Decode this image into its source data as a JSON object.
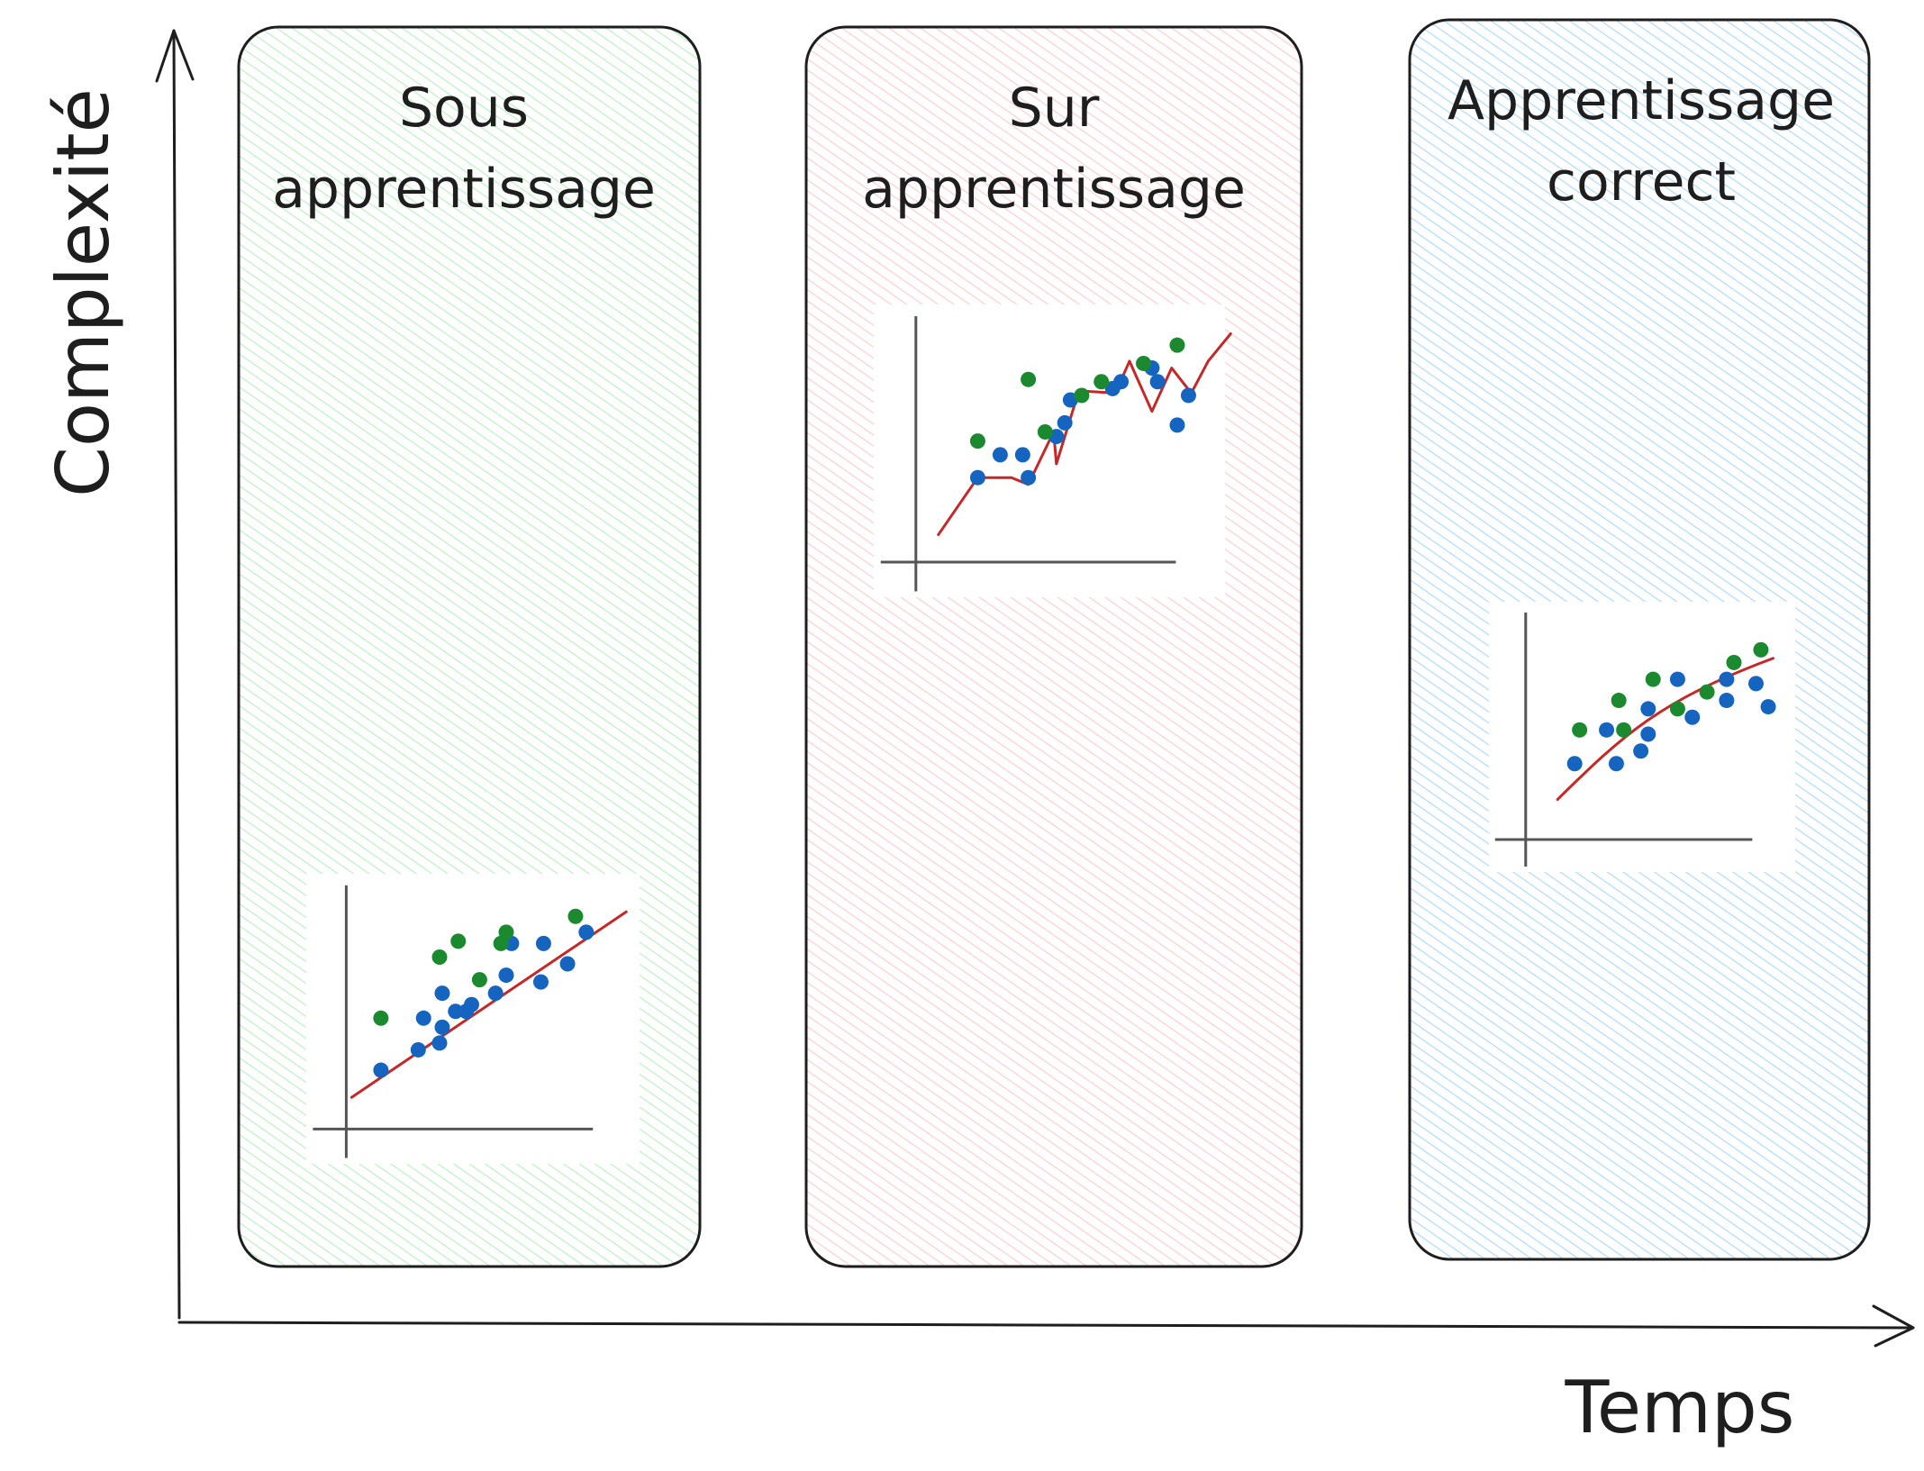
{
  "axes": {
    "y_label": "Complexité",
    "x_label": "Temps"
  },
  "colors": {
    "ink": "#1e1e1e",
    "green_panel": "#b2f2bb",
    "red_panel": "#ffc9c9",
    "blue_panel": "#a5d8ff",
    "point_blue": "#1565c0",
    "point_green": "#1b8a2e",
    "fit_line": "#c62828",
    "plot_axis": "#555555"
  },
  "panels": [
    {
      "title_line1": "Sous",
      "title_line2": "apprentissage",
      "fill_color": "#b2f2bb",
      "thumbnail": {
        "fit": "linear",
        "blue_points": [
          [
            0.13,
            0.26
          ],
          [
            0.27,
            0.35
          ],
          [
            0.35,
            0.38
          ],
          [
            0.36,
            0.45
          ],
          [
            0.36,
            0.6
          ],
          [
            0.45,
            0.52
          ],
          [
            0.47,
            0.55
          ],
          [
            0.56,
            0.6
          ],
          [
            0.6,
            0.68
          ],
          [
            0.62,
            0.82
          ],
          [
            0.73,
            0.65
          ],
          [
            0.74,
            0.82
          ],
          [
            0.83,
            0.73
          ],
          [
            0.9,
            0.87
          ],
          [
            0.29,
            0.49
          ],
          [
            0.41,
            0.52
          ]
        ],
        "green_points": [
          [
            0.13,
            0.49
          ],
          [
            0.42,
            0.83
          ],
          [
            0.5,
            0.66
          ],
          [
            0.6,
            0.87
          ],
          [
            0.35,
            0.76
          ],
          [
            0.86,
            0.94
          ],
          [
            0.58,
            0.82
          ]
        ]
      }
    },
    {
      "title_line1": "Sur",
      "title_line2": "apprentissage",
      "fill_color": "#ffc9c9",
      "thumbnail": {
        "fit": "overfit",
        "blue_points": [
          [
            0.22,
            0.37
          ],
          [
            0.38,
            0.47
          ],
          [
            0.4,
            0.37
          ],
          [
            0.5,
            0.55
          ],
          [
            0.53,
            0.61
          ],
          [
            0.55,
            0.71
          ],
          [
            0.7,
            0.76
          ],
          [
            0.73,
            0.79
          ],
          [
            0.84,
            0.85
          ],
          [
            0.86,
            0.79
          ],
          [
            0.97,
            0.73
          ],
          [
            0.93,
            0.6
          ],
          [
            0.3,
            0.47
          ]
        ],
        "green_points": [
          [
            0.22,
            0.53
          ],
          [
            0.4,
            0.8
          ],
          [
            0.46,
            0.57
          ],
          [
            0.59,
            0.73
          ],
          [
            0.66,
            0.79
          ],
          [
            0.81,
            0.87
          ],
          [
            0.93,
            0.95
          ]
        ]
      }
    },
    {
      "title_line1": "Apprentissage",
      "title_line2": "correct",
      "fill_color": "#a5d8ff",
      "thumbnail": {
        "fit": "curve",
        "blue_points": [
          [
            0.2,
            0.36
          ],
          [
            0.33,
            0.52
          ],
          [
            0.37,
            0.36
          ],
          [
            0.47,
            0.42
          ],
          [
            0.5,
            0.5
          ],
          [
            0.5,
            0.62
          ],
          [
            0.62,
            0.76
          ],
          [
            0.68,
            0.58
          ],
          [
            0.82,
            0.66
          ],
          [
            0.82,
            0.76
          ],
          [
            0.94,
            0.74
          ],
          [
            0.99,
            0.63
          ]
        ],
        "green_points": [
          [
            0.22,
            0.52
          ],
          [
            0.38,
            0.66
          ],
          [
            0.4,
            0.52
          ],
          [
            0.52,
            0.76
          ],
          [
            0.62,
            0.62
          ],
          [
            0.74,
            0.7
          ],
          [
            0.85,
            0.84
          ],
          [
            0.96,
            0.9
          ]
        ]
      }
    }
  ]
}
